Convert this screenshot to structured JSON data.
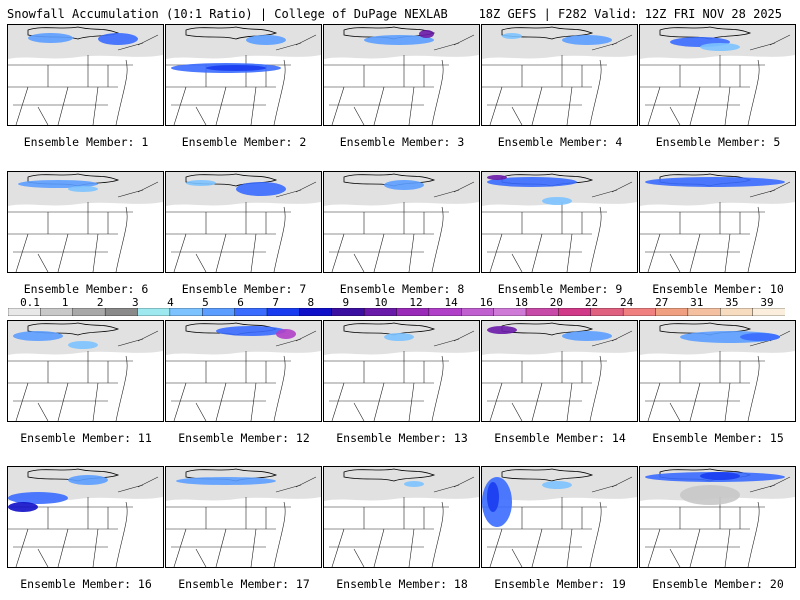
{
  "header": {
    "left": "Snowfall Accumulation (10:1 Ratio) | College of DuPage NEXLAB",
    "right": "18Z GEFS | F282 Valid: 12Z FRI NOV 28 2025"
  },
  "colorbar": {
    "ticks": [
      "0.1",
      "1",
      "2",
      "3",
      "4",
      "5",
      "6",
      "7",
      "8",
      "9",
      "10",
      "12",
      "14",
      "16",
      "18",
      "20",
      "22",
      "24",
      "27",
      "31",
      "35",
      "39"
    ],
    "colors": [
      "#e8e8e8",
      "#c8c8c8",
      "#a8a8a8",
      "#8a8a8a",
      "#9ee8f0",
      "#7cc3ff",
      "#5c9eff",
      "#3a6cff",
      "#1a3cf0",
      "#1010c8",
      "#3b0fa0",
      "#6a1aa8",
      "#9a2ab8",
      "#b040c8",
      "#c060d0",
      "#d07ad8",
      "#c84aa8",
      "#d03a88",
      "#e06080",
      "#f08080",
      "#f0a080",
      "#f4c0a0",
      "#f8dcc0",
      "#fbeedd"
    ]
  },
  "panels": [
    {
      "label": "Ensemble Member: 1",
      "snow": [
        {
          "x": 20,
          "y": 8,
          "w": 45,
          "h": 10,
          "c": "#5c9eff"
        },
        {
          "x": 90,
          "y": 8,
          "w": 40,
          "h": 12,
          "c": "#3a6cff"
        }
      ]
    },
    {
      "label": "Ensemble Member: 2",
      "snow": [
        {
          "x": 5,
          "y": 38,
          "w": 110,
          "h": 10,
          "c": "#3a6cff"
        },
        {
          "x": 40,
          "y": 40,
          "w": 60,
          "h": 6,
          "c": "#1a3cf0"
        },
        {
          "x": 80,
          "y": 10,
          "w": 40,
          "h": 10,
          "c": "#5c9eff"
        }
      ]
    },
    {
      "label": "Ensemble Member: 3",
      "snow": [
        {
          "x": 40,
          "y": 10,
          "w": 70,
          "h": 10,
          "c": "#5c9eff"
        },
        {
          "x": 95,
          "y": 5,
          "w": 15,
          "h": 8,
          "c": "#6a1aa8"
        }
      ]
    },
    {
      "label": "Ensemble Member: 4",
      "snow": [
        {
          "x": 80,
          "y": 10,
          "w": 50,
          "h": 10,
          "c": "#5c9eff"
        },
        {
          "x": 20,
          "y": 8,
          "w": 20,
          "h": 6,
          "c": "#7cc3ff"
        }
      ]
    },
    {
      "label": "Ensemble Member: 5",
      "snow": [
        {
          "x": 30,
          "y": 12,
          "w": 60,
          "h": 10,
          "c": "#3a6cff"
        },
        {
          "x": 60,
          "y": 18,
          "w": 40,
          "h": 8,
          "c": "#7cc3ff"
        }
      ]
    },
    {
      "label": "Ensemble Member: 6",
      "snow": [
        {
          "x": 10,
          "y": 8,
          "w": 80,
          "h": 8,
          "c": "#5c9eff"
        },
        {
          "x": 60,
          "y": 14,
          "w": 30,
          "h": 6,
          "c": "#7cc3ff"
        }
      ]
    },
    {
      "label": "Ensemble Member: 7",
      "snow": [
        {
          "x": 70,
          "y": 10,
          "w": 50,
          "h": 14,
          "c": "#3a6cff"
        },
        {
          "x": 20,
          "y": 8,
          "w": 30,
          "h": 6,
          "c": "#7cc3ff"
        }
      ]
    },
    {
      "label": "Ensemble Member: 8",
      "snow": [
        {
          "x": 60,
          "y": 8,
          "w": 40,
          "h": 10,
          "c": "#5c9eff"
        }
      ]
    },
    {
      "label": "Ensemble Member: 9",
      "snow": [
        {
          "x": 5,
          "y": 5,
          "w": 90,
          "h": 10,
          "c": "#3a6cff"
        },
        {
          "x": 5,
          "y": 3,
          "w": 20,
          "h": 5,
          "c": "#6a1aa8"
        },
        {
          "x": 60,
          "y": 25,
          "w": 30,
          "h": 8,
          "c": "#7cc3ff"
        }
      ]
    },
    {
      "label": "Ensemble Member: 10",
      "snow": [
        {
          "x": 5,
          "y": 5,
          "w": 140,
          "h": 10,
          "c": "#3a6cff"
        }
      ]
    },
    {
      "label": "Ensemble Member: 11",
      "snow": [
        {
          "x": 5,
          "y": 10,
          "w": 50,
          "h": 10,
          "c": "#5c9eff"
        },
        {
          "x": 60,
          "y": 20,
          "w": 30,
          "h": 8,
          "c": "#7cc3ff"
        }
      ]
    },
    {
      "label": "Ensemble Member: 12",
      "snow": [
        {
          "x": 50,
          "y": 5,
          "w": 70,
          "h": 10,
          "c": "#3a6cff"
        },
        {
          "x": 110,
          "y": 8,
          "w": 20,
          "h": 10,
          "c": "#b040c8"
        }
      ]
    },
    {
      "label": "Ensemble Member: 13",
      "snow": [
        {
          "x": 60,
          "y": 12,
          "w": 30,
          "h": 8,
          "c": "#7cc3ff"
        }
      ]
    },
    {
      "label": "Ensemble Member: 14",
      "snow": [
        {
          "x": 5,
          "y": 5,
          "w": 30,
          "h": 8,
          "c": "#6a1aa8"
        },
        {
          "x": 80,
          "y": 10,
          "w": 50,
          "h": 10,
          "c": "#5c9eff"
        }
      ]
    },
    {
      "label": "Ensemble Member: 15",
      "snow": [
        {
          "x": 40,
          "y": 10,
          "w": 100,
          "h": 12,
          "c": "#5c9eff"
        },
        {
          "x": 100,
          "y": 12,
          "w": 40,
          "h": 8,
          "c": "#3a6cff"
        }
      ]
    },
    {
      "label": "Ensemble Member: 16",
      "snow": [
        {
          "x": 0,
          "y": 25,
          "w": 60,
          "h": 12,
          "c": "#3a6cff"
        },
        {
          "x": 0,
          "y": 35,
          "w": 30,
          "h": 10,
          "c": "#1010c8"
        },
        {
          "x": 60,
          "y": 8,
          "w": 40,
          "h": 10,
          "c": "#5c9eff"
        }
      ]
    },
    {
      "label": "Ensemble Member: 17",
      "snow": [
        {
          "x": 10,
          "y": 10,
          "w": 100,
          "h": 8,
          "c": "#5c9eff"
        }
      ]
    },
    {
      "label": "Ensemble Member: 18",
      "snow": [
        {
          "x": 80,
          "y": 14,
          "w": 20,
          "h": 6,
          "c": "#7cc3ff"
        }
      ]
    },
    {
      "label": "Ensemble Member: 19",
      "snow": [
        {
          "x": 0,
          "y": 10,
          "w": 30,
          "h": 50,
          "c": "#3a6cff"
        },
        {
          "x": 5,
          "y": 15,
          "w": 12,
          "h": 30,
          "c": "#1a3cf0"
        },
        {
          "x": 60,
          "y": 14,
          "w": 30,
          "h": 8,
          "c": "#7cc3ff"
        }
      ]
    },
    {
      "label": "Ensemble Member: 20",
      "snow": [
        {
          "x": 5,
          "y": 5,
          "w": 140,
          "h": 10,
          "c": "#3a6cff"
        },
        {
          "x": 60,
          "y": 5,
          "w": 40,
          "h": 8,
          "c": "#1a3cf0"
        },
        {
          "x": 40,
          "y": 18,
          "w": 60,
          "h": 20,
          "c": "#c8c8c8"
        }
      ]
    }
  ]
}
